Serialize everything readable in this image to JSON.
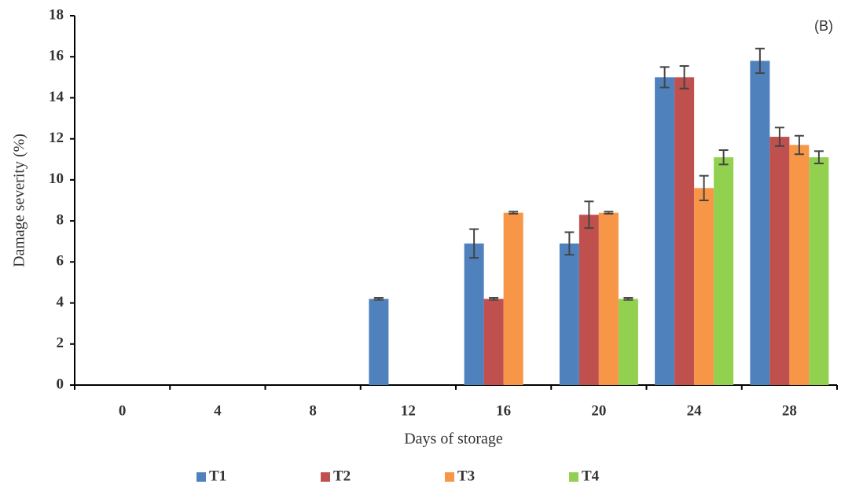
{
  "chart_data": {
    "type": "bar",
    "annotation": "(B)",
    "ylabel": "Damage severity (%)",
    "xlabel": "Days of storage",
    "categories": [
      "0",
      "4",
      "8",
      "12",
      "16",
      "20",
      "24",
      "28"
    ],
    "series": [
      {
        "name": "T1",
        "color": "#4f81bd",
        "values": [
          0,
          0,
          0,
          4.2,
          6.9,
          6.9,
          15,
          15.8
        ],
        "errors": [
          0,
          0,
          0,
          0.05,
          0.7,
          0.55,
          0.5,
          0.6
        ]
      },
      {
        "name": "T2",
        "color": "#c0504d",
        "values": [
          0,
          0,
          0,
          0,
          4.2,
          8.3,
          15,
          12.1
        ],
        "errors": [
          0,
          0,
          0,
          0,
          0.05,
          0.65,
          0.55,
          0.45
        ]
      },
      {
        "name": "T3",
        "color": "#f79646",
        "values": [
          0,
          0,
          0,
          0,
          8.4,
          8.4,
          9.6,
          11.7
        ],
        "errors": [
          0,
          0,
          0,
          0,
          0.05,
          0.05,
          0.6,
          0.45
        ]
      },
      {
        "name": "T4",
        "color": "#92d050",
        "values": [
          0,
          0,
          0,
          0,
          0,
          4.2,
          11.1,
          11.1
        ],
        "errors": [
          0,
          0,
          0,
          0,
          0,
          0.05,
          0.35,
          0.3
        ]
      }
    ],
    "ylim": [
      0,
      18
    ],
    "yticks": [
      0,
      2,
      4,
      6,
      8,
      10,
      12,
      14,
      16,
      18
    ],
    "grid": false,
    "legend": "bottom"
  }
}
